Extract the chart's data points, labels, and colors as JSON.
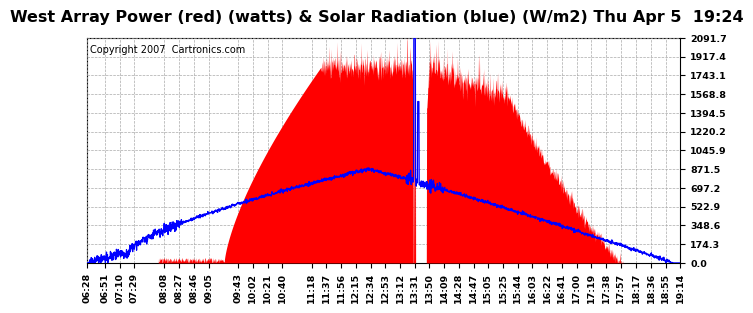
{
  "title": "West Array Power (red) (watts) & Solar Radiation (blue) (W/m2) Thu Apr 5  19:24",
  "copyright": "Copyright 2007  Cartronics.com",
  "yticks": [
    0.0,
    174.3,
    348.6,
    522.9,
    697.2,
    871.5,
    1045.9,
    1220.2,
    1394.5,
    1568.8,
    1743.1,
    1917.4,
    2091.7
  ],
  "ymax": 2091.7,
  "xtick_labels": [
    "06:28",
    "06:51",
    "07:10",
    "07:29",
    "08:08",
    "08:27",
    "08:46",
    "09:05",
    "09:43",
    "10:02",
    "10:21",
    "10:40",
    "11:18",
    "11:37",
    "11:56",
    "12:15",
    "12:34",
    "12:53",
    "13:12",
    "13:31",
    "13:50",
    "14:09",
    "14:28",
    "14:47",
    "15:05",
    "15:25",
    "15:44",
    "16:03",
    "16:22",
    "16:41",
    "17:00",
    "17:19",
    "17:38",
    "17:57",
    "18:17",
    "18:36",
    "18:55",
    "19:14"
  ],
  "red_color": "#ff0000",
  "blue_color": "#0000ff",
  "bg_color": "#ffffff",
  "grid_color": "#aaaaaa",
  "title_fontsize": 11.5,
  "copyright_fontsize": 7.0,
  "tick_fontsize": 6.8
}
